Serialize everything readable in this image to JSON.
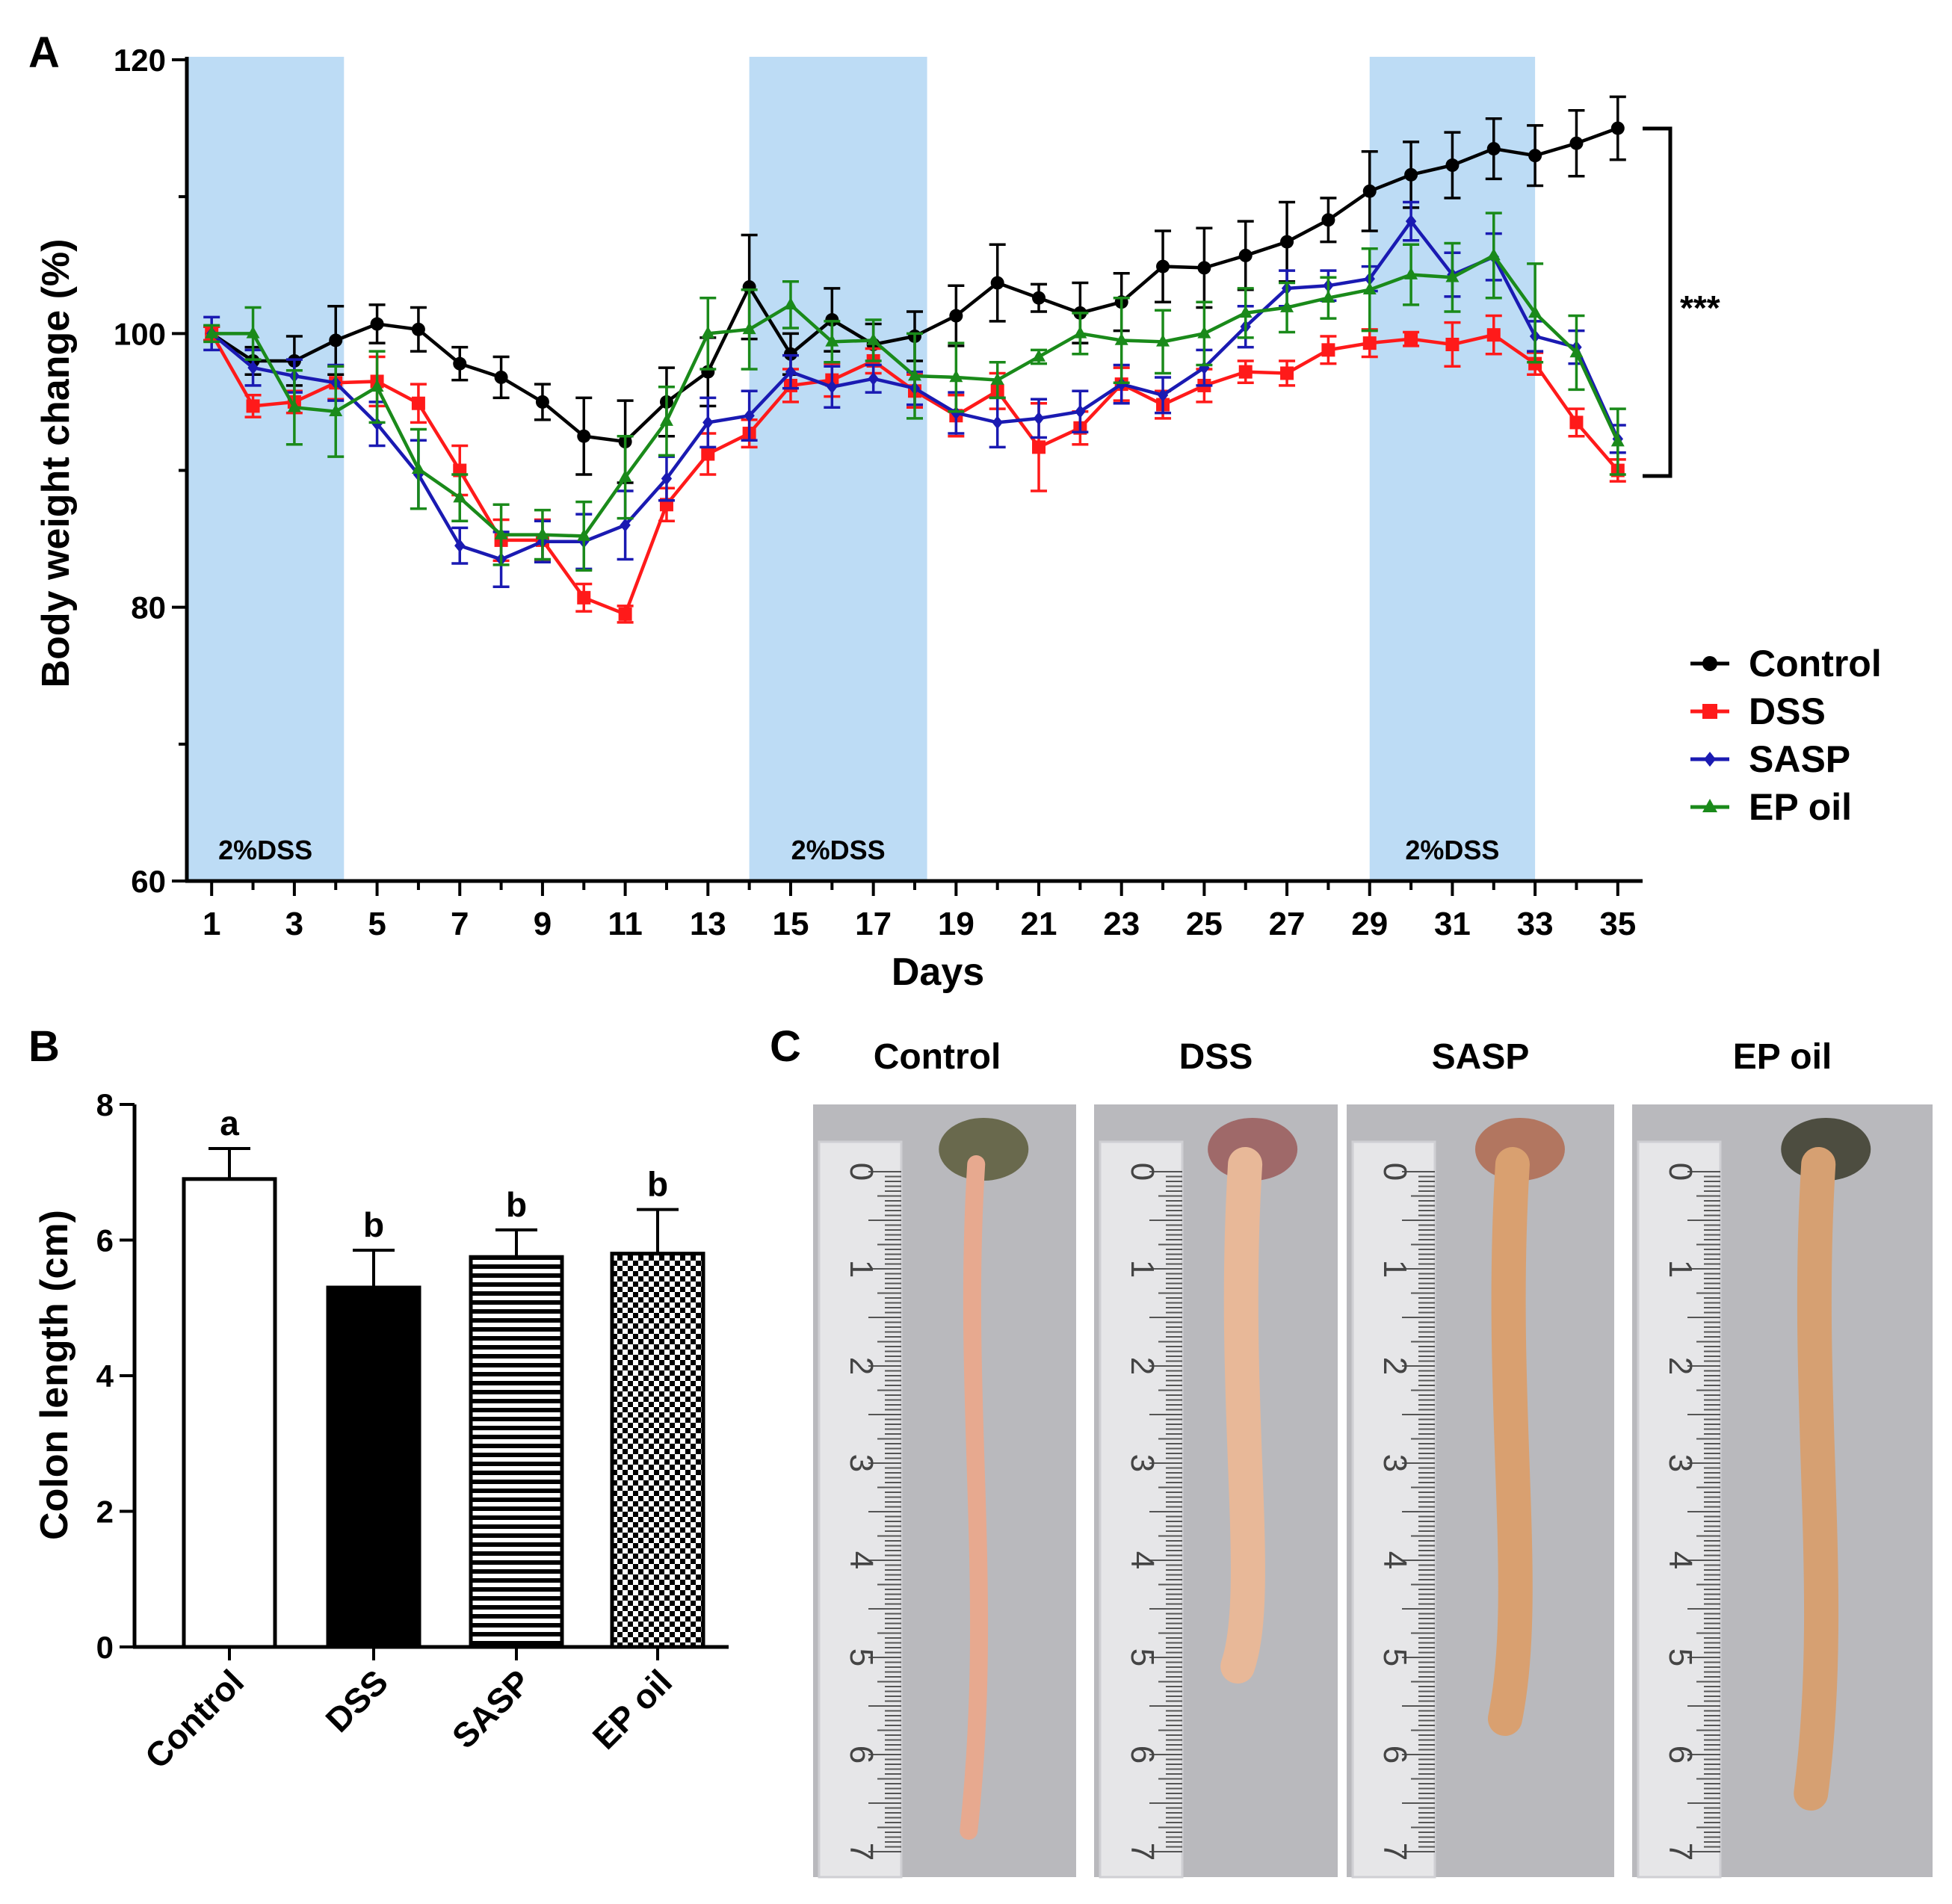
{
  "chart_data": [
    {
      "panel": "A",
      "type": "line",
      "xlabel": "Days",
      "ylabel": "Body weight change (%)",
      "xlim": [
        0.4,
        35.6
      ],
      "ylim": [
        60,
        120
      ],
      "x_ticks": [
        "1",
        "3",
        "5",
        "7",
        "9",
        "11",
        "13",
        "15",
        "17",
        "19",
        "21",
        "23",
        "25",
        "27",
        "29",
        "31",
        "33",
        "35"
      ],
      "y_ticks": [
        "60",
        "80",
        "100",
        "120"
      ],
      "dss_periods": [
        {
          "start": 0.4,
          "end": 4.2,
          "label": "2%DSS"
        },
        {
          "start": 14.0,
          "end": 18.3,
          "label": "2%DSS"
        },
        {
          "start": 29.0,
          "end": 33.0,
          "label": "2%DSS"
        }
      ],
      "significance_label": "***",
      "x": [
        1,
        2,
        3,
        4,
        5,
        6,
        7,
        8,
        9,
        10,
        11,
        12,
        13,
        14,
        15,
        16,
        17,
        18,
        19,
        20,
        21,
        22,
        23,
        24,
        25,
        26,
        27,
        28,
        29,
        30,
        31,
        32,
        33,
        34,
        35
      ],
      "series": [
        {
          "name": "Control",
          "color": "#000000",
          "marker": "circle",
          "values": [
            100,
            98,
            98,
            99.5,
            100.7,
            100.3,
            97.8,
            96.8,
            95,
            92.5,
            92.1,
            95,
            97.2,
            103.4,
            98.5,
            101,
            99.2,
            99.8,
            101.3,
            103.7,
            102.6,
            101.5,
            102.3,
            104.9,
            104.8,
            105.7,
            106.7,
            108.3,
            110.4,
            111.6,
            112.3,
            113.5,
            113,
            113.9,
            115
          ],
          "errors": [
            0.5,
            1,
            1.8,
            2.5,
            1.4,
            1.6,
            1.2,
            1.5,
            1.3,
            2.8,
            3,
            2.5,
            2.5,
            3.8,
            1.5,
            2.3,
            1.5,
            1.8,
            2.2,
            2.8,
            1,
            2.2,
            2.1,
            2.6,
            2.9,
            2.5,
            2.9,
            1.6,
            2.9,
            2.4,
            2.4,
            2.2,
            2.2,
            2.4,
            2.3
          ]
        },
        {
          "name": "DSS",
          "color": "#ff1a1a",
          "marker": "square",
          "values": [
            100,
            94.7,
            95,
            96.4,
            96.5,
            94.9,
            90,
            84.9,
            84.9,
            80.7,
            79.5,
            87.5,
            91.2,
            92.7,
            96.2,
            96.6,
            98,
            95.8,
            94,
            95.8,
            91.7,
            93.1,
            96.3,
            94.8,
            96.2,
            97.2,
            97.1,
            98.8,
            99.3,
            99.6,
            99.2,
            99.9,
            97.8,
            93.5,
            90
          ],
          "errors": [
            0.5,
            0.8,
            0.8,
            1.2,
            1.8,
            1.4,
            1.8,
            1.5,
            1.5,
            1,
            0.6,
            1.2,
            1.5,
            1,
            1.2,
            1.2,
            0.9,
            1.2,
            1.5,
            1.3,
            3.2,
            1.2,
            1.2,
            1,
            1.2,
            0.8,
            0.9,
            1,
            1,
            0.5,
            1.6,
            1.4,
            0.8,
            1,
            0.8
          ]
        },
        {
          "name": "SASP",
          "color": "#1a1ab2",
          "marker": "diamond",
          "values": [
            100,
            97.5,
            96.9,
            96.4,
            93.4,
            89.7,
            84.5,
            83.5,
            84.8,
            84.8,
            86,
            89.4,
            93.5,
            94,
            97.2,
            96.1,
            96.7,
            96,
            94.2,
            93.5,
            93.8,
            94.3,
            96.3,
            95.5,
            97.5,
            100.5,
            103.3,
            103.5,
            104,
            108.2,
            104.3,
            105.6,
            99.8,
            99,
            92.3
          ],
          "errors": [
            1.2,
            1.3,
            1.2,
            1.3,
            1.6,
            2.5,
            1.3,
            2,
            1.5,
            2,
            2.5,
            1.6,
            1.8,
            1.8,
            1.2,
            1.5,
            1,
            1.2,
            1.5,
            1.8,
            1.4,
            1.5,
            1.4,
            1.3,
            1.3,
            1.5,
            1.3,
            1.1,
            0.9,
            1.4,
            1.6,
            1.7,
            1.1,
            1.2,
            1
          ]
        },
        {
          "name": "EP oil",
          "color": "#1a8a1a",
          "marker": "triangle",
          "values": [
            100,
            100,
            94.6,
            94.3,
            96.1,
            90.1,
            88,
            85.3,
            85.3,
            85.2,
            89.5,
            93.6,
            100,
            100.3,
            102.1,
            99.4,
            99.5,
            96.9,
            96.8,
            96.6,
            98.3,
            100,
            99.5,
            99.4,
            100,
            101.5,
            101.9,
            102.6,
            103.2,
            104.3,
            104.1,
            105.7,
            101.5,
            98.6,
            92.1
          ],
          "errors": [
            0.6,
            1.9,
            2.7,
            3.3,
            2.6,
            2.9,
            1.7,
            2.2,
            1.8,
            2.5,
            3,
            2.5,
            2.6,
            2.9,
            1.7,
            1.5,
            1.5,
            3.1,
            2.5,
            1.3,
            0.5,
            1.5,
            3.1,
            2.3,
            2.3,
            1.8,
            1.8,
            1.5,
            3,
            2.2,
            2.5,
            3.1,
            3.6,
            2.7,
            2.4
          ]
        }
      ],
      "legend": {
        "position": "right",
        "entries": [
          "Control",
          "DSS",
          "SASP",
          "EP oil"
        ]
      }
    },
    {
      "panel": "B",
      "type": "bar",
      "ylabel": "Colon length (cm)",
      "ylim": [
        0,
        8
      ],
      "y_ticks": [
        "0",
        "2",
        "4",
        "6",
        "8"
      ],
      "categories": [
        "Control",
        "DSS",
        "SASP",
        "EP oil"
      ],
      "values": [
        6.9,
        5.3,
        5.75,
        5.8
      ],
      "errors": [
        0.45,
        0.55,
        0.4,
        0.65
      ],
      "significance_letters": [
        "a",
        "b",
        "b",
        "b"
      ],
      "fills": [
        "white",
        "black",
        "horizontal-stripes",
        "checkerboard"
      ]
    }
  ],
  "panels": {
    "A": {
      "label": "A"
    },
    "B": {
      "label": "B"
    },
    "C": {
      "label": "C",
      "titles": [
        "Control",
        "DSS",
        "SASP",
        "EP oil"
      ],
      "ruler_numbers": [
        "0",
        "1",
        "2",
        "3",
        "4",
        "5",
        "6",
        "7"
      ]
    }
  }
}
